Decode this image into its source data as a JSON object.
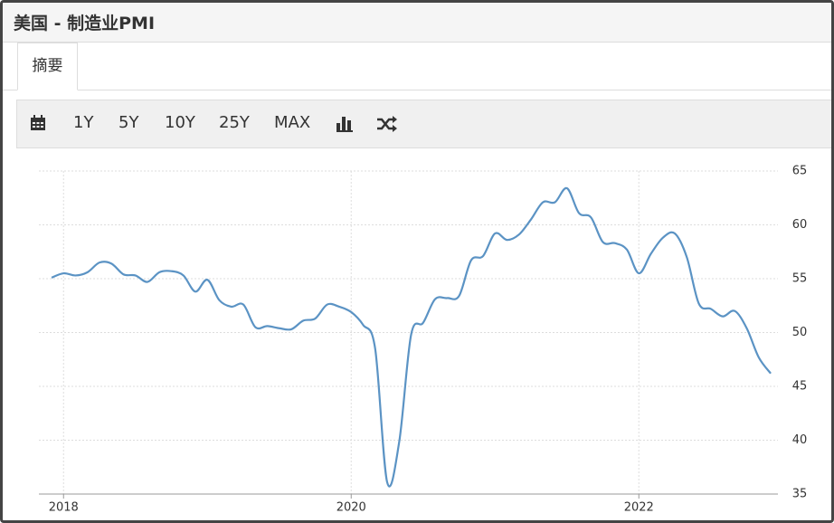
{
  "header": {
    "title": "美国 - 制造业PMI"
  },
  "tabs": [
    "摘要"
  ],
  "toolbar": {
    "ranges": [
      "1Y",
      "5Y",
      "10Y",
      "25Y",
      "MAX"
    ]
  },
  "chart_data": {
    "type": "line",
    "color": "#5b93c4",
    "grid": true,
    "categories": [
      null,
      "2018",
      null,
      null,
      null,
      null,
      null,
      null,
      null,
      null,
      null,
      null,
      null,
      null,
      null,
      null,
      null,
      null,
      null,
      null,
      null,
      null,
      null,
      null,
      null,
      "2020",
      null,
      null,
      null,
      null,
      null,
      null,
      null,
      null,
      null,
      null,
      null,
      null,
      null,
      null,
      null,
      null,
      null,
      null,
      null,
      null,
      null,
      null,
      null,
      "2022",
      null,
      null,
      null,
      null,
      null,
      null,
      null,
      null,
      null,
      null,
      null
    ],
    "values": [
      55.1,
      55.5,
      55.3,
      55.6,
      56.5,
      56.4,
      55.4,
      55.3,
      54.7,
      55.6,
      55.7,
      55.3,
      53.8,
      54.9,
      53.0,
      52.4,
      52.6,
      50.5,
      50.6,
      50.4,
      50.3,
      51.1,
      51.3,
      52.6,
      52.4,
      51.9,
      50.7,
      48.5,
      36.1,
      39.8,
      49.8,
      50.9,
      53.1,
      53.2,
      53.4,
      56.7,
      57.1,
      59.2,
      58.6,
      59.1,
      60.5,
      62.1,
      62.1,
      63.4,
      61.1,
      60.7,
      58.4,
      58.3,
      57.7,
      55.5,
      57.3,
      58.8,
      59.2,
      57.0,
      52.7,
      52.2,
      51.5,
      52.0,
      50.4,
      47.7,
      46.2
    ],
    "ylim": [
      35,
      65
    ],
    "yticks": [
      35,
      40,
      45,
      50,
      55,
      60,
      65
    ]
  }
}
